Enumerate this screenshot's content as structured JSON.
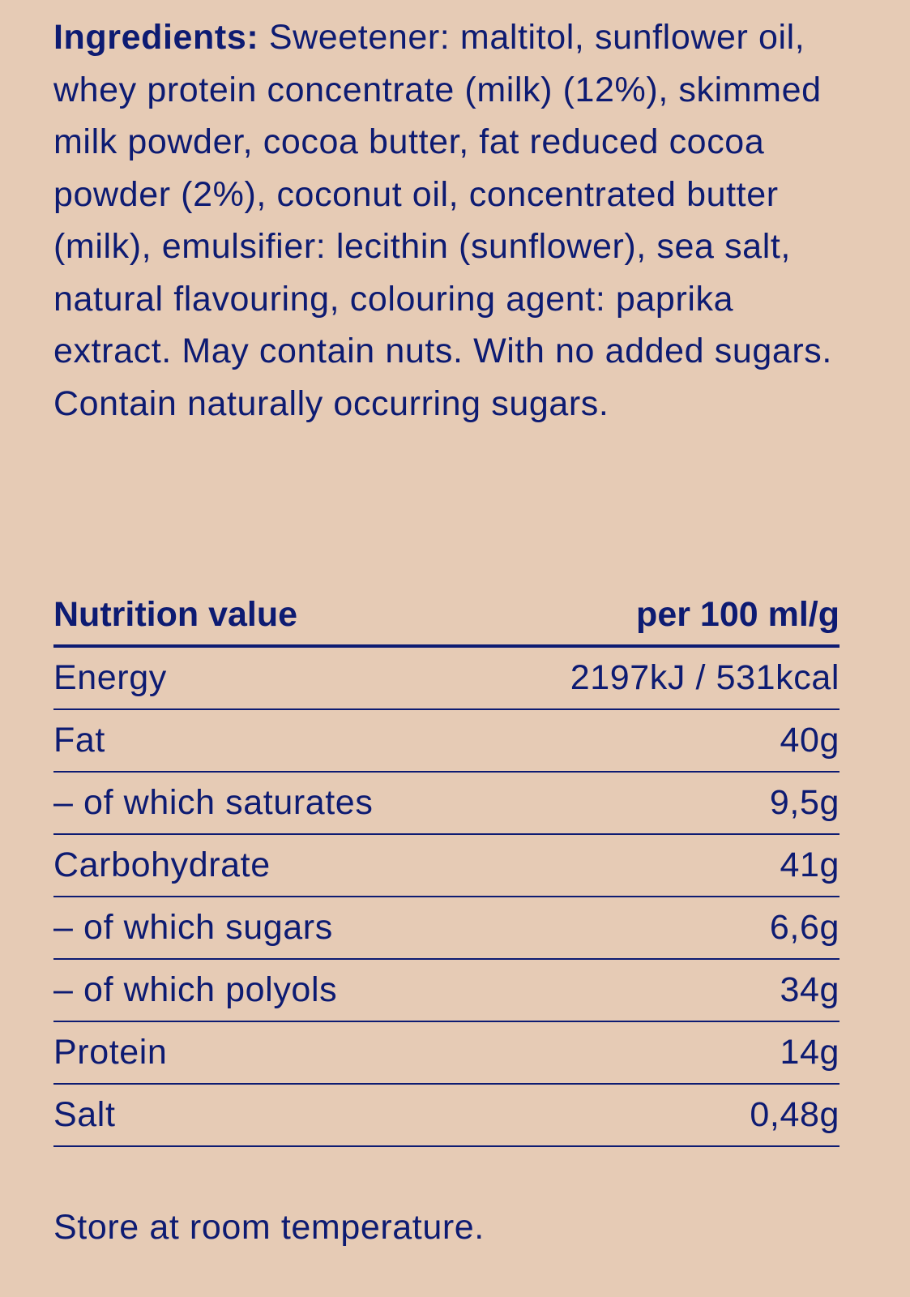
{
  "ingredients": {
    "label": "Ingredients:",
    "text": "Sweetener: maltitol, sunflower oil, whey protein concentrate (milk) (12%), skimmed milk powder, cocoa butter, fat reduced cocoa powder (2%), coconut oil, concentrated butter (milk), emulsifier: lecithin (sunflower), sea salt, natural flavouring, colouring agent: paprika extract. May contain nuts. With no added sugars. Contain naturally occurring sugars."
  },
  "nutrition": {
    "header_label": "Nutrition value",
    "header_unit": "per 100 ml/g",
    "rows": [
      {
        "name": "Energy",
        "value": "2197kJ / 531kcal"
      },
      {
        "name": "Fat",
        "value": "40g"
      },
      {
        "name": "– of which saturates",
        "value": "9,5g"
      },
      {
        "name": "Carbohydrate",
        "value": "41g"
      },
      {
        "name": "– of which sugars",
        "value": "6,6g"
      },
      {
        "name": "– of which polyols",
        "value": "34g"
      },
      {
        "name": "Protein",
        "value": "14g"
      },
      {
        "name": "Salt",
        "value": "0,48g"
      }
    ]
  },
  "storage": "Store at room temperature.",
  "colors": {
    "background": "#e6cbb5",
    "text": "#0d1b72"
  }
}
